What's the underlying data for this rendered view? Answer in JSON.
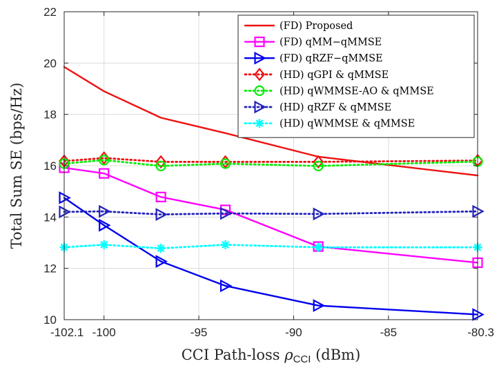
{
  "chart_data": {
    "type": "line",
    "xlabel": "CCI Path-loss ρ_CCI (dBm)",
    "xlabel_parts": {
      "prefix": "CCI Path-loss ",
      "symbol": "ρ",
      "subscript": "CCI",
      "suffix": " (dBm)"
    },
    "ylabel": "Total Sum SE (bps/Hz)",
    "xlim": [
      -102.1,
      -80.3
    ],
    "ylim": [
      10,
      22
    ],
    "grid": true,
    "legend_position": "top-right",
    "x_ticks": [
      {
        "value": -102.1,
        "label": "-102.1"
      },
      {
        "value": -100,
        "label": "-100"
      },
      {
        "value": -95,
        "label": "-95"
      },
      {
        "value": -90,
        "label": "-90"
      },
      {
        "value": -85,
        "label": "-85"
      },
      {
        "value": -80.3,
        "label": "-80.3"
      }
    ],
    "y_ticks": [
      {
        "value": 10,
        "label": "10"
      },
      {
        "value": 12,
        "label": "12"
      },
      {
        "value": 14,
        "label": "14"
      },
      {
        "value": 16,
        "label": "16"
      },
      {
        "value": 18,
        "label": "18"
      },
      {
        "value": 20,
        "label": "20"
      },
      {
        "value": 22,
        "label": "22"
      }
    ],
    "x": [
      -102.1,
      -100,
      -97,
      -93.6,
      -88.7,
      -80.3
    ],
    "series": [
      {
        "name": "(FD) Proposed",
        "color": "#ee1111",
        "dash": "solid",
        "marker": "none",
        "values": [
          19.85,
          18.9,
          17.87,
          17.27,
          16.35,
          15.62
        ]
      },
      {
        "name": "(FD) qMM−qMMSE",
        "color": "#ff00ff",
        "dash": "solid",
        "marker": "square",
        "values": [
          15.92,
          15.7,
          14.78,
          14.28,
          12.85,
          12.22
        ]
      },
      {
        "name": "(FD) qRZF−qMMSE",
        "color": "#0000ee",
        "dash": "solid",
        "marker": "triangle-right",
        "values": [
          14.75,
          13.68,
          12.27,
          11.32,
          10.55,
          10.2
        ]
      },
      {
        "name": "(HD) qGPI & qMMSE",
        "color": "#ee1111",
        "dash": "dotted",
        "marker": "diamond",
        "values": [
          16.18,
          16.3,
          16.15,
          16.15,
          16.15,
          16.2
        ]
      },
      {
        "name": "(HD) qWMMSE-AO & qMMSE",
        "color": "#00ee00",
        "dash": "dotted",
        "marker": "circle",
        "values": [
          16.08,
          16.22,
          15.99,
          16.08,
          15.99,
          16.16
        ]
      },
      {
        "name": "(HD) qRZF & qMMSE",
        "color": "#2222bb",
        "dash": "dotted",
        "marker": "triangle-right",
        "values": [
          14.2,
          14.22,
          14.1,
          14.14,
          14.12,
          14.22
        ]
      },
      {
        "name": "(HD) qWMMSE & qMMSE",
        "color": "#00ffff",
        "dash": "dotted",
        "marker": "asterisk",
        "values": [
          12.82,
          12.92,
          12.78,
          12.92,
          12.82,
          12.82
        ]
      }
    ]
  }
}
